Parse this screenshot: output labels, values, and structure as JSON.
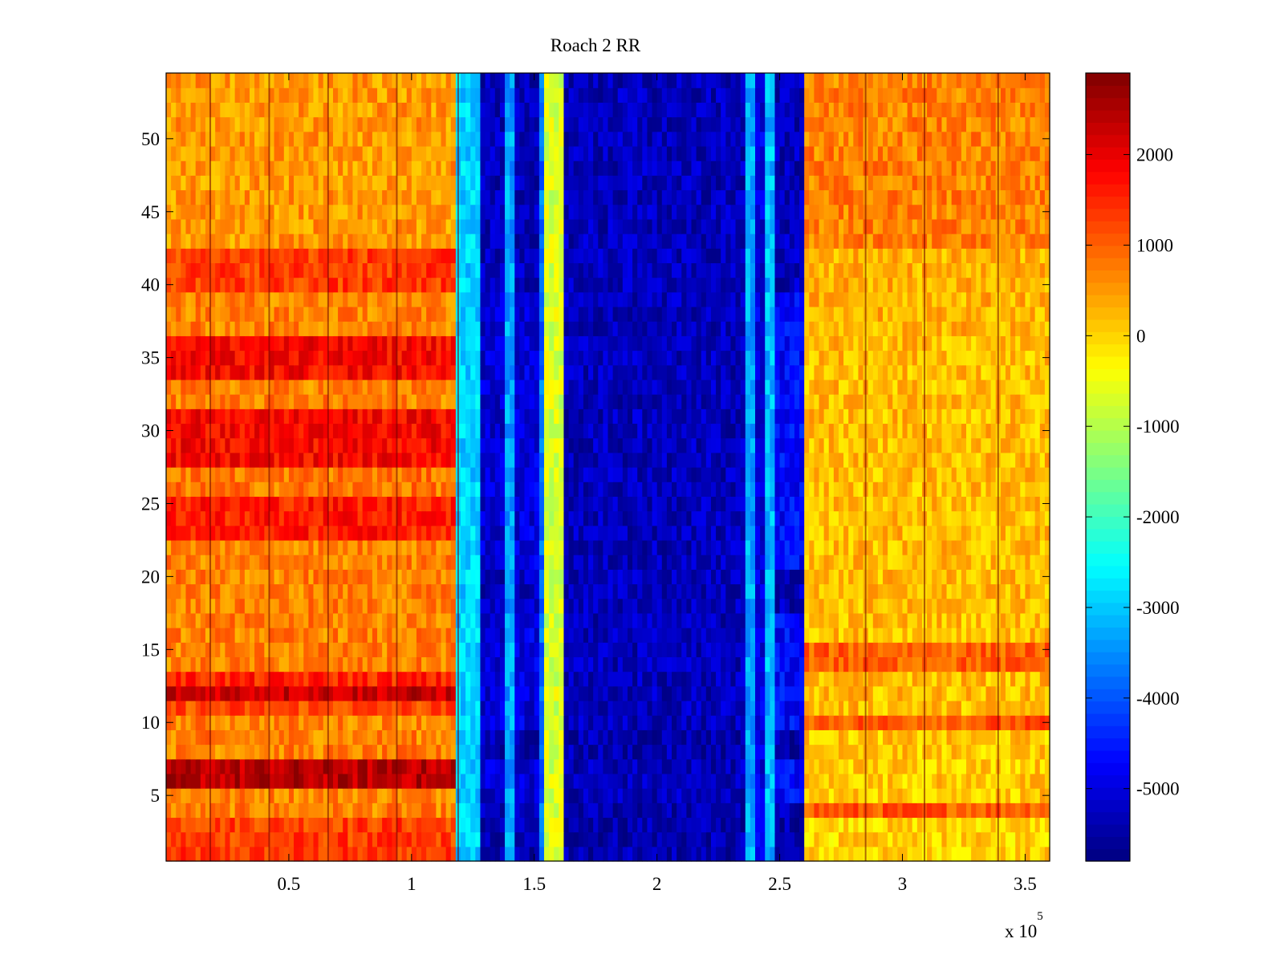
{
  "chart_data": {
    "type": "heatmap",
    "title": "Roach 2 RR",
    "xlabel": "",
    "ylabel": "",
    "x_multiplier_label": "x 10",
    "x_multiplier_exponent": "5",
    "xlim": [
      0,
      360000
    ],
    "ylim": [
      0.5,
      54.5
    ],
    "rows": 54,
    "x_ticks": [
      {
        "value": 50000,
        "label": "0.5"
      },
      {
        "value": 100000,
        "label": "1"
      },
      {
        "value": 150000,
        "label": "1.5"
      },
      {
        "value": 200000,
        "label": "2"
      },
      {
        "value": 250000,
        "label": "2.5"
      },
      {
        "value": 300000,
        "label": "3"
      },
      {
        "value": 350000,
        "label": "3.5"
      }
    ],
    "y_ticks": [
      {
        "value": 5,
        "label": "5"
      },
      {
        "value": 10,
        "label": "10"
      },
      {
        "value": 15,
        "label": "15"
      },
      {
        "value": 20,
        "label": "20"
      },
      {
        "value": 25,
        "label": "25"
      },
      {
        "value": 30,
        "label": "30"
      },
      {
        "value": 35,
        "label": "35"
      },
      {
        "value": 40,
        "label": "40"
      },
      {
        "value": 45,
        "label": "45"
      },
      {
        "value": 50,
        "label": "50"
      }
    ],
    "colorbar": {
      "colormap": "jet",
      "clim": [
        -5800,
        2900
      ],
      "ticks": [
        {
          "value": 2000,
          "label": "2000"
        },
        {
          "value": 1000,
          "label": "1000"
        },
        {
          "value": 0,
          "label": "0"
        },
        {
          "value": -1000,
          "label": "-1000"
        },
        {
          "value": -2000,
          "label": "-2000"
        },
        {
          "value": -3000,
          "label": "-3000"
        },
        {
          "value": -4000,
          "label": "-4000"
        },
        {
          "value": -5000,
          "label": "-5000"
        }
      ]
    },
    "column_segments": [
      {
        "x": [
          0,
          119000
        ],
        "value": 900
      },
      {
        "x": [
          119000,
          129000
        ],
        "value": -2900
      },
      {
        "x": [
          129000,
          139000
        ],
        "value": -5100
      },
      {
        "x": [
          139000,
          142000
        ],
        "value": -3300
      },
      {
        "x": [
          142000,
          152000
        ],
        "value": -5000
      },
      {
        "x": [
          152000,
          155000
        ],
        "value": -3800
      },
      {
        "x": [
          155000,
          162000
        ],
        "value": -700
      },
      {
        "x": [
          162000,
          236000
        ],
        "value": -5300
      },
      {
        "x": [
          236000,
          240000
        ],
        "value": -3300
      },
      {
        "x": [
          240000,
          245000
        ],
        "value": -5000
      },
      {
        "x": [
          245000,
          249000
        ],
        "value": -3100
      },
      {
        "x": [
          249000,
          261000
        ],
        "value": -4700
      },
      {
        "x": [
          261000,
          360000
        ],
        "value": 400
      }
    ],
    "row_offsets_left": [
      {
        "rows": [
          1,
          3
        ],
        "value": 1300
      },
      {
        "rows": [
          4,
          5
        ],
        "value": 700
      },
      {
        "rows": [
          6,
          7
        ],
        "value": 2400
      },
      {
        "rows": [
          8,
          10
        ],
        "value": 700
      },
      {
        "rows": [
          11,
          11
        ],
        "value": 1200
      },
      {
        "rows": [
          12,
          12
        ],
        "value": 2300
      },
      {
        "rows": [
          13,
          13
        ],
        "value": 1500
      },
      {
        "rows": [
          14,
          22
        ],
        "value": 700
      },
      {
        "rows": [
          23,
          25
        ],
        "value": 1600
      },
      {
        "rows": [
          26,
          27
        ],
        "value": 800
      },
      {
        "rows": [
          28,
          31
        ],
        "value": 1800
      },
      {
        "rows": [
          32,
          33
        ],
        "value": 700
      },
      {
        "rows": [
          34,
          36
        ],
        "value": 1800
      },
      {
        "rows": [
          37,
          39
        ],
        "value": 700
      },
      {
        "rows": [
          40,
          42
        ],
        "value": 1300
      },
      {
        "rows": [
          43,
          54
        ],
        "value": 500
      }
    ],
    "row_offsets_middle": [
      {
        "rows": [
          1,
          4
        ],
        "value": -5700
      },
      {
        "rows": [
          5,
          7
        ],
        "value": -3800
      },
      {
        "rows": [
          8,
          9
        ],
        "value": -5700
      },
      {
        "rows": [
          10,
          17
        ],
        "value": -5000
      },
      {
        "rows": [
          18,
          20
        ],
        "value": -5600
      },
      {
        "rows": [
          21,
          26
        ],
        "value": -4300
      },
      {
        "rows": [
          27,
          39
        ],
        "value": -4900
      },
      {
        "rows": [
          40,
          54
        ],
        "value": -5600
      }
    ],
    "row_offsets_right": [
      {
        "rows": [
          1,
          3
        ],
        "value": 0
      },
      {
        "rows": [
          4,
          4
        ],
        "value": 1100
      },
      {
        "rows": [
          5,
          9
        ],
        "value": 100
      },
      {
        "rows": [
          10,
          10
        ],
        "value": 1100
      },
      {
        "rows": [
          11,
          13
        ],
        "value": 200
      },
      {
        "rows": [
          14,
          15
        ],
        "value": 1000
      },
      {
        "rows": [
          16,
          36
        ],
        "value": 200
      },
      {
        "rows": [
          37,
          42
        ],
        "value": 300
      },
      {
        "rows": [
          43,
          54
        ],
        "value": 700
      }
    ],
    "dark_vertical_lines_x": [
      18000,
      42000,
      66000,
      94000,
      119000,
      285000,
      309000,
      339000
    ]
  }
}
